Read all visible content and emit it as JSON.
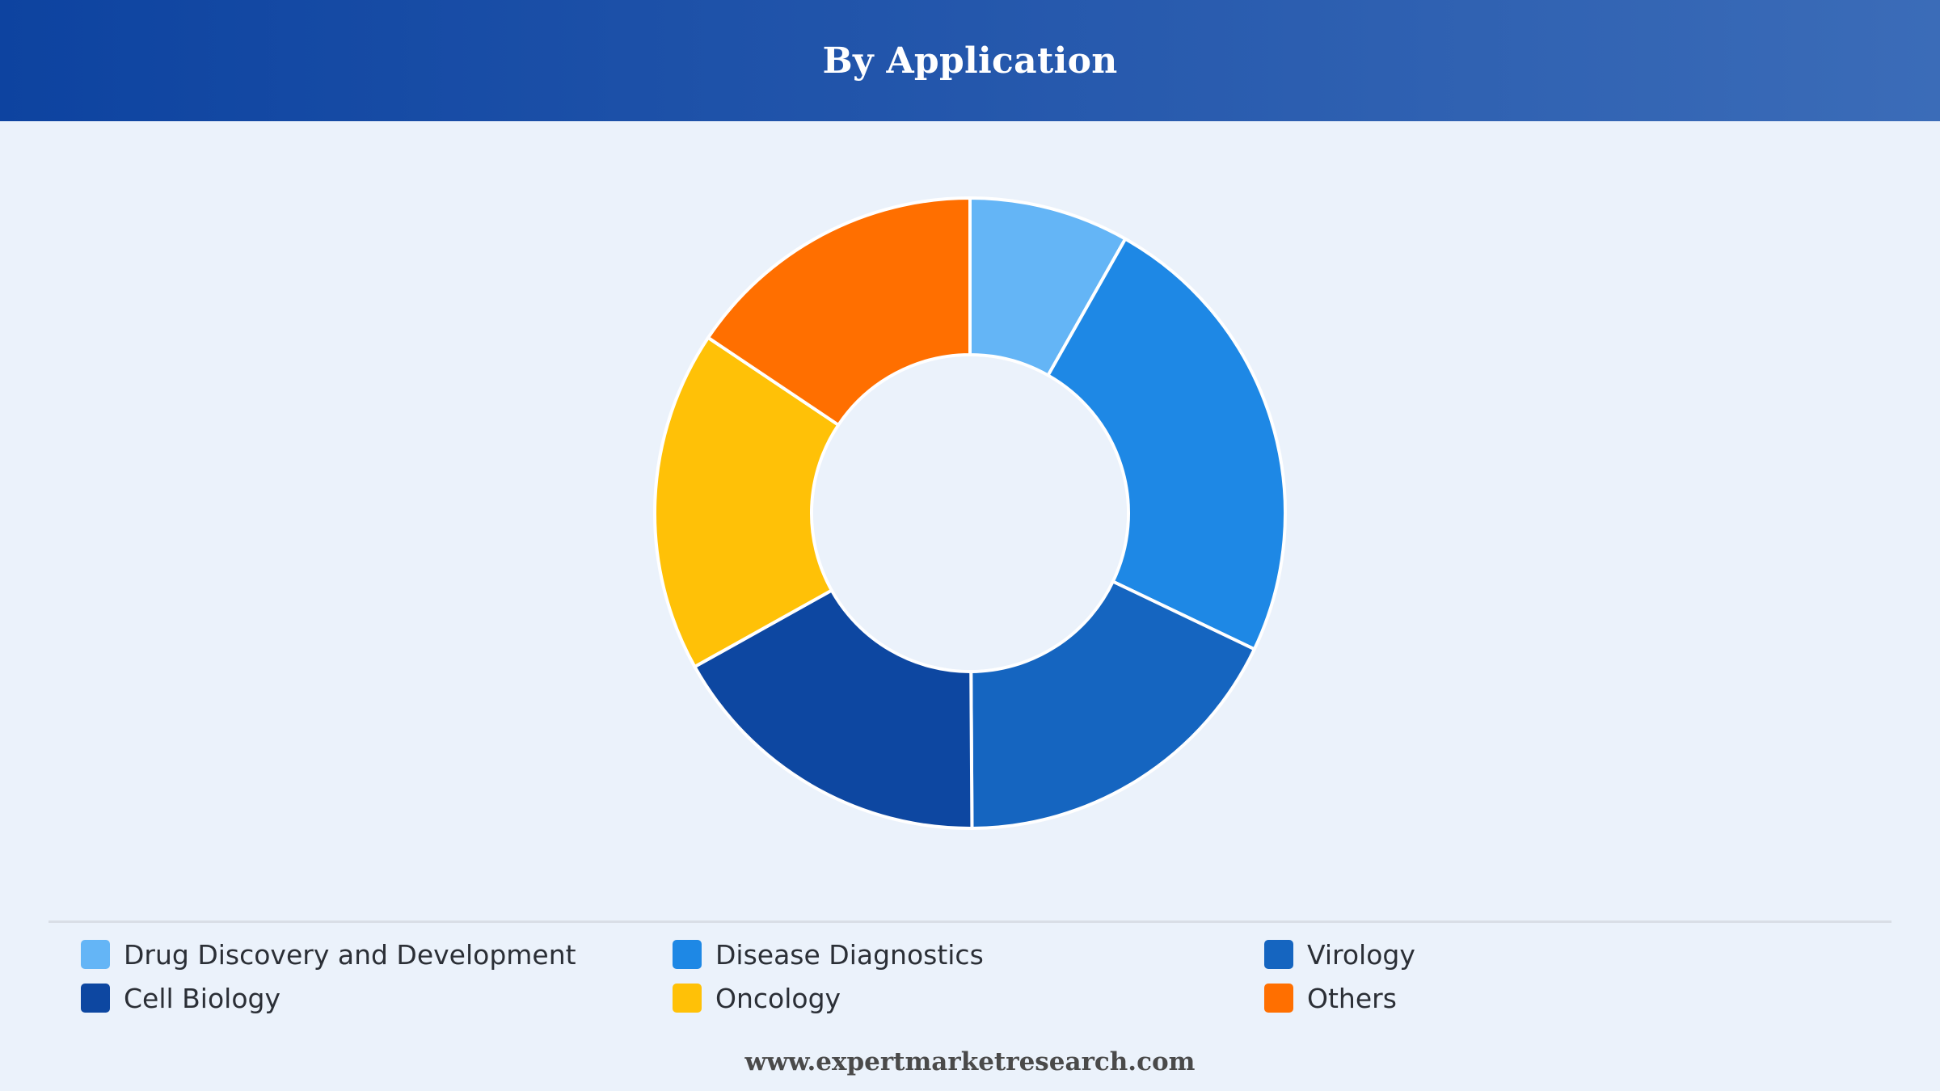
{
  "header": {
    "title": "By Application"
  },
  "chart_data": {
    "type": "pie",
    "subtype": "donut",
    "title": "By Application",
    "legend_position": "bottom",
    "categories": [
      "Drug Discovery and Development",
      "Disease Diagnostics",
      "Virology",
      "Cell Biology",
      "Oncology",
      "Others"
    ],
    "values": [
      8.2,
      23.9,
      17.8,
      17.0,
      17.5,
      15.6
    ],
    "colors": [
      "#64b5f6",
      "#1e88e5",
      "#1565c0",
      "#0d47a1",
      "#ffc107",
      "#ff6f00"
    ]
  },
  "footer": {
    "text": "www.expertmarketresearch.com"
  }
}
